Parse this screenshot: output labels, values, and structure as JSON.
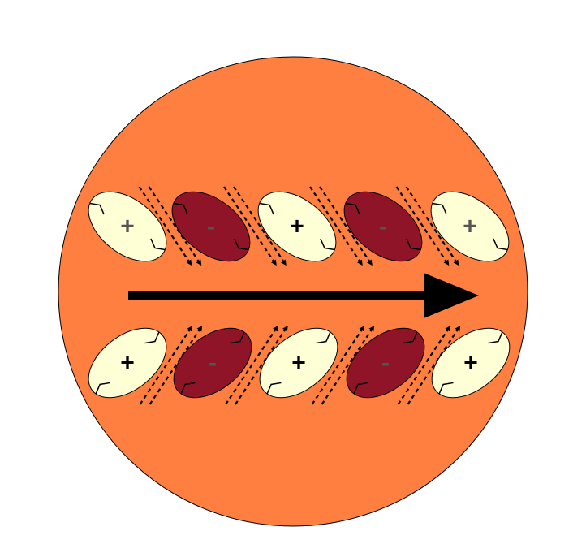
{
  "colors": {
    "background": "#ffffff",
    "disk_fill": "#fe7f3f",
    "positive_fill": "#ffffd5",
    "negative_fill": "#8f1428",
    "outline": "#000000",
    "main_arrow": "#000000",
    "sign_on_positive": "#000000",
    "sign_on_negative": "#555555",
    "top_row_first_sign": "#555555",
    "top_row_last_sign": "#555555"
  },
  "main_arrow": {
    "direction": "right",
    "icon": "right-arrow-icon"
  },
  "rows": [
    {
      "name": "top",
      "tilt": "down-right",
      "flow_arrow_direction": "down-right",
      "lobes": [
        {
          "polarity": "positive",
          "sign": "+"
        },
        {
          "polarity": "negative",
          "sign": "-"
        },
        {
          "polarity": "positive",
          "sign": "+"
        },
        {
          "polarity": "negative",
          "sign": "-"
        },
        {
          "polarity": "positive",
          "sign": "+"
        }
      ]
    },
    {
      "name": "bottom",
      "tilt": "up-right",
      "flow_arrow_direction": "up-right",
      "lobes": [
        {
          "polarity": "positive",
          "sign": "+"
        },
        {
          "polarity": "negative",
          "sign": "-"
        },
        {
          "polarity": "positive",
          "sign": "+"
        },
        {
          "polarity": "negative",
          "sign": "-"
        },
        {
          "polarity": "positive",
          "sign": "+"
        }
      ]
    }
  ]
}
